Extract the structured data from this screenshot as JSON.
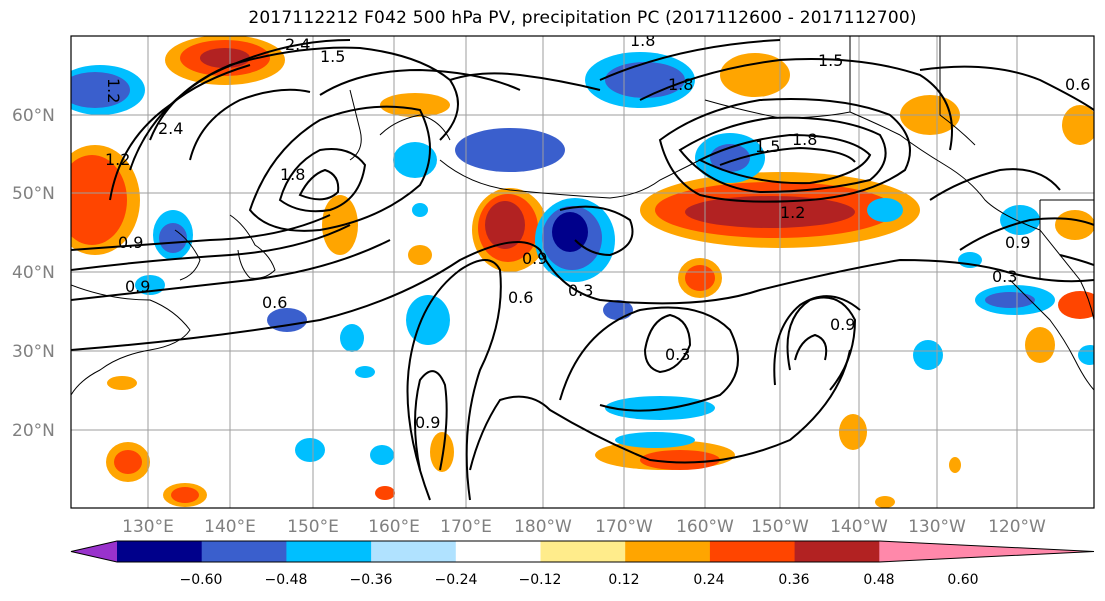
{
  "title": "2017112212 F042 500 hPa PV, precipitation PC (2017112600 - 2017112700)",
  "lat_labels": [
    "60°N",
    "50°N",
    "40°N",
    "30°N",
    "20°N"
  ],
  "lon_labels": [
    "130°E",
    "140°E",
    "150°E",
    "160°E",
    "170°E",
    "180°W",
    "170°W",
    "160°W",
    "150°W",
    "140°W",
    "130°W",
    "120°W"
  ],
  "colorbar": {
    "colors": [
      "#9932cc",
      "#00008b",
      "#3a5fcd",
      "#00bfff",
      "#b0e2ff",
      "#ffffff",
      "#ffec8b",
      "#ffa500",
      "#ff4500",
      "#b22222",
      "#ff88aa"
    ],
    "tick_labels": [
      "−0.60",
      "−0.48",
      "−0.36",
      "−0.24",
      "−0.12",
      "0.12",
      "0.24",
      "0.36",
      "0.48",
      "0.60"
    ]
  },
  "contour_labels": [
    "2.4",
    "1.5",
    "1.2",
    "2.4",
    "1.8",
    "0.9",
    "1.2",
    "0.9",
    "0.6",
    "0.9",
    "0.6",
    "0.3",
    "0.3",
    "0.9",
    "0.9",
    "1.5",
    "1.8",
    "1.8",
    "1.8",
    "1.5",
    "0.9",
    "0.3",
    "0.6",
    "1.2"
  ]
}
